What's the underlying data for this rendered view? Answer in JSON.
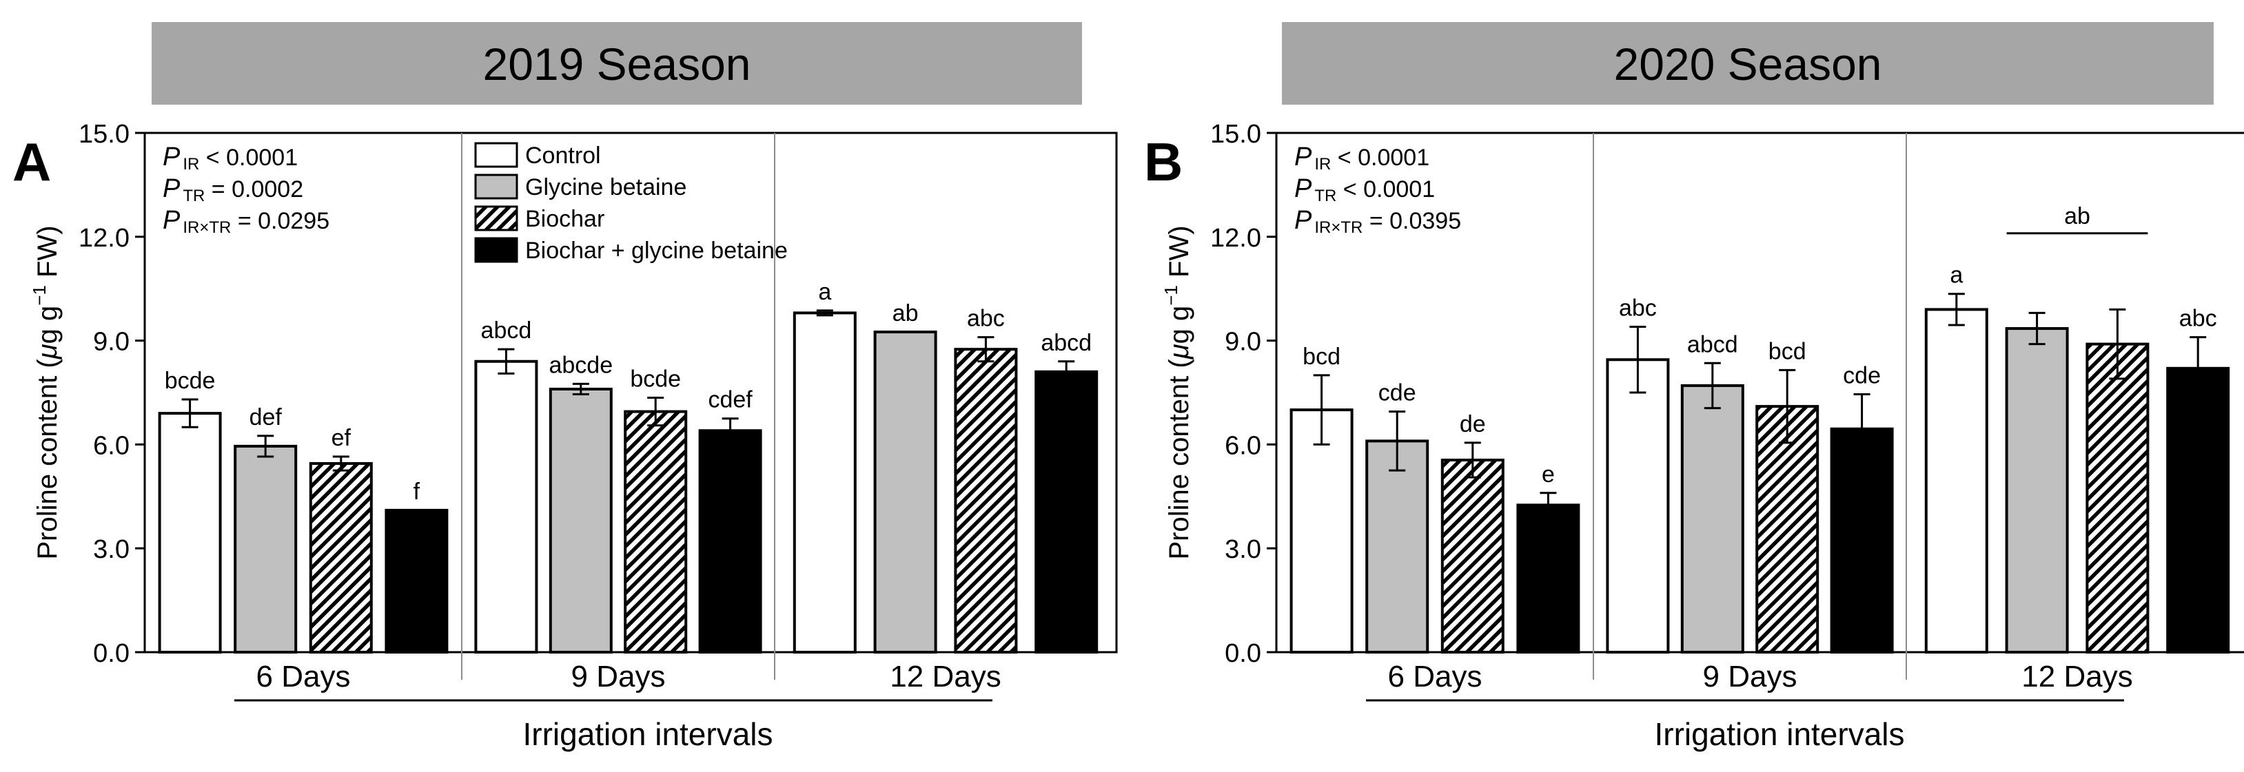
{
  "chart_data": [
    {
      "type": "bar",
      "panel_label": "A",
      "title": "2019 Season",
      "ylabel": "Proline content (μg g⁻¹ FW)",
      "ylabel_parts": {
        "main": "Proline content (",
        "unit_mu": "μ",
        "unit_g": "g g",
        "exp": "−1",
        "tail": " FW)"
      },
      "xlabel": "Irrigation intervals",
      "ylim": [
        0,
        15
      ],
      "yticks": [
        "0.0",
        "3.0",
        "6.0",
        "9.0",
        "12.0",
        "15.0"
      ],
      "categories": [
        "6 Days",
        "9 Days",
        "12 Days"
      ],
      "series": [
        {
          "name": "Control",
          "values": [
            6.9,
            8.4,
            9.8
          ],
          "errors": [
            0.4,
            0.35,
            0.07
          ],
          "letters": [
            "bcde",
            "abcd",
            "a"
          ]
        },
        {
          "name": "Glycine betaine",
          "values": [
            5.95,
            7.6,
            9.25
          ],
          "errors": [
            0.3,
            0.15,
            0.0
          ],
          "letters": [
            "def",
            "abcde",
            "ab"
          ]
        },
        {
          "name": "Biochar",
          "values": [
            5.45,
            6.95,
            8.75
          ],
          "errors": [
            0.2,
            0.4,
            0.35
          ],
          "letters": [
            "ef",
            "bcde",
            "abc"
          ]
        },
        {
          "name": "Biochar + glycine betaine",
          "values": [
            4.1,
            6.4,
            8.1
          ],
          "errors": [
            0.0,
            0.35,
            0.3
          ],
          "letters": [
            "f",
            "cdef",
            "abcd"
          ]
        }
      ],
      "pvalues": [
        {
          "p": "P",
          "sub": "IR",
          "rest": " < 0.0001"
        },
        {
          "p": "P",
          "sub": "TR",
          "rest": " = 0.0002"
        },
        {
          "p": "P",
          "sub": "IR×TR",
          "rest": " = 0.0295"
        }
      ],
      "legend_position": "top-center",
      "group_bar": "under-all",
      "grid": false
    },
    {
      "type": "bar",
      "panel_label": "B",
      "title": "2020 Season",
      "ylabel": "Proline content (μg g⁻¹ FW)",
      "ylabel_parts": {
        "main": "Proline content (",
        "unit_mu": "μ",
        "unit_g": "g g",
        "exp": "−1",
        "tail": " FW)"
      },
      "xlabel": "Irrigation intervals",
      "ylim": [
        0,
        15
      ],
      "yticks": [
        "0.0",
        "3.0",
        "6.0",
        "9.0",
        "12.0",
        "15.0"
      ],
      "categories": [
        "6 Days",
        "9 Days",
        "12 Days"
      ],
      "series": [
        {
          "name": "Control",
          "values": [
            7.0,
            8.45,
            9.9
          ],
          "errors": [
            1.0,
            0.95,
            0.45
          ],
          "letters": [
            "bcd",
            "abc",
            "a"
          ]
        },
        {
          "name": "Glycine betaine",
          "values": [
            6.1,
            7.7,
            9.35
          ],
          "errors": [
            0.85,
            0.65,
            0.45
          ],
          "letters": [
            "cde",
            "abcd",
            ""
          ]
        },
        {
          "name": "Biochar",
          "values": [
            5.55,
            7.1,
            8.9
          ],
          "errors": [
            0.5,
            1.05,
            1.0
          ],
          "letters": [
            "de",
            "bcd",
            ""
          ]
        },
        {
          "name": "Biochar + glycine betaine",
          "values": [
            4.25,
            6.45,
            8.2
          ],
          "errors": [
            0.35,
            1.0,
            0.9
          ],
          "letters": [
            "e",
            "cde",
            "abc"
          ]
        }
      ],
      "shared_letter": {
        "text": "ab",
        "group": 2,
        "from_series": 1,
        "to_series": 2
      },
      "pvalues": [
        {
          "p": "P",
          "sub": "IR",
          "rest": " < 0.0001"
        },
        {
          "p": "P",
          "sub": "TR",
          "rest": " < 0.0001"
        },
        {
          "p": "P",
          "sub": "IR×TR",
          "rest": " = 0.0395"
        }
      ],
      "group_bar": "under-all",
      "grid": false
    }
  ]
}
